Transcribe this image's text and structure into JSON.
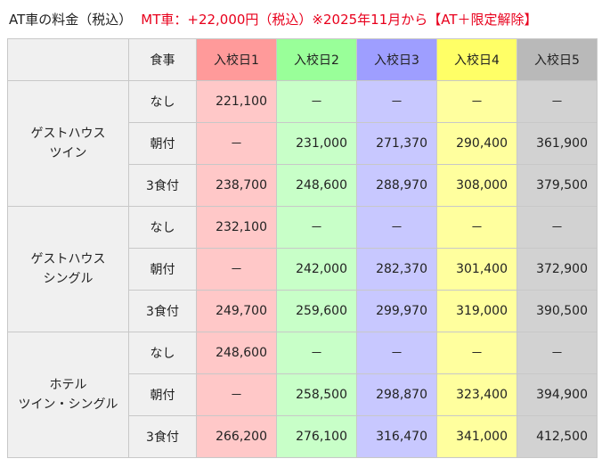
{
  "heading": {
    "title": "AT車の料金（税込）",
    "note": "MT車：+22,000円（税込）※2025年11月から【AT＋限定解除】"
  },
  "columns": {
    "meal": "食事",
    "days": [
      "入校日1",
      "入校日2",
      "入校日3",
      "入校日4",
      "入校日5"
    ]
  },
  "groups": [
    {
      "label_lines": [
        "ゲストハウス",
        "ツイン"
      ],
      "rows": [
        {
          "meal": "なし",
          "values": [
            "221,100",
            "－",
            "－",
            "－",
            "－"
          ]
        },
        {
          "meal": "朝付",
          "values": [
            "－",
            "231,000",
            "271,370",
            "290,400",
            "361,900"
          ]
        },
        {
          "meal": "3食付",
          "values": [
            "238,700",
            "248,600",
            "288,970",
            "308,000",
            "379,500"
          ]
        }
      ]
    },
    {
      "label_lines": [
        "ゲストハウス",
        "シングル"
      ],
      "rows": [
        {
          "meal": "なし",
          "values": [
            "232,100",
            "－",
            "－",
            "－",
            "－"
          ]
        },
        {
          "meal": "朝付",
          "values": [
            "－",
            "242,000",
            "282,370",
            "301,400",
            "372,900"
          ]
        },
        {
          "meal": "3食付",
          "values": [
            "249,700",
            "259,600",
            "299,970",
            "319,000",
            "390,500"
          ]
        }
      ]
    },
    {
      "label_lines": [
        "ホテル",
        "ツイン・シングル"
      ],
      "rows": [
        {
          "meal": "なし",
          "values": [
            "248,600",
            "－",
            "－",
            "－",
            "－"
          ]
        },
        {
          "meal": "朝付",
          "values": [
            "－",
            "258,500",
            "298,870",
            "323,400",
            "394,900"
          ]
        },
        {
          "meal": "3食付",
          "values": [
            "266,200",
            "276,100",
            "316,470",
            "341,000",
            "412,500"
          ]
        }
      ]
    }
  ],
  "colors": {
    "accent_red": "#e8001c",
    "day1": "#ffc8c8",
    "day2": "#c8ffc8",
    "day3": "#c8c8ff",
    "day4": "#ffff9e",
    "day5": "#d2d2d2"
  }
}
